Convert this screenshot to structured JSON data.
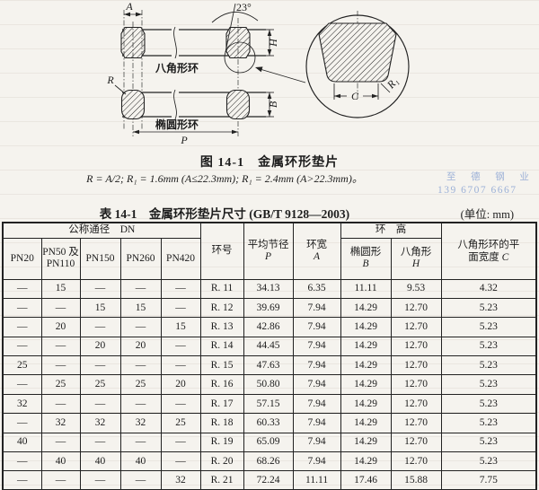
{
  "fig": {
    "caption": "图 14-1　金属环形垫片",
    "formula": "R = A/2;  R₁ = 1.6mm (A≤22.3mm);  R₁ = 2.4mm (A>22.3mm)。",
    "octagonal_ring": "八角形环",
    "oval_ring": "椭圆形环",
    "dim_a": "A",
    "dim_h": "H",
    "dim_b": "B",
    "dim_p": "P",
    "dim_r": "R",
    "dim_r1": "R₁",
    "dim_c": "C",
    "angle": "23°"
  },
  "watermark": {
    "company": "至 德 钢 业",
    "phone": "139 6707 6667",
    "color": "#87a1d2"
  },
  "table": {
    "title": "表 14-1　金属环形垫片尺寸 (GB/T 9128—2003)",
    "unit": "(单位: mm)",
    "header": {
      "dn_group": "公称通径　DN",
      "pn20": "PN20",
      "pn50_110": "PN50 及\nPN110",
      "pn150": "PN150",
      "pn260": "PN260",
      "pn420": "PN420",
      "ring_no": "环号",
      "pitch_label": "平均节径",
      "pitch_sym": "P",
      "width_label": "环宽",
      "width_sym": "A",
      "height_group": "环　高",
      "oval_label": "椭圆形",
      "oval_sym": "B",
      "oct_label": "八角形",
      "oct_sym": "H",
      "flat_label": "八角形环的平面宽度 ",
      "flat_sym": "C"
    },
    "rows": [
      [
        "—",
        "15",
        "—",
        "—",
        "—",
        "R. 11",
        "34.13",
        "6.35",
        "11.11",
        "9.53",
        "4.32"
      ],
      [
        "—",
        "—",
        "15",
        "15",
        "—",
        "R. 12",
        "39.69",
        "7.94",
        "14.29",
        "12.70",
        "5.23"
      ],
      [
        "—",
        "20",
        "—",
        "—",
        "15",
        "R. 13",
        "42.86",
        "7.94",
        "14.29",
        "12.70",
        "5.23"
      ],
      [
        "—",
        "—",
        "20",
        "20",
        "—",
        "R. 14",
        "44.45",
        "7.94",
        "14.29",
        "12.70",
        "5.23"
      ],
      [
        "25",
        "—",
        "—",
        "—",
        "—",
        "R. 15",
        "47.63",
        "7.94",
        "14.29",
        "12.70",
        "5.23"
      ],
      [
        "—",
        "25",
        "25",
        "25",
        "20",
        "R. 16",
        "50.80",
        "7.94",
        "14.29",
        "12.70",
        "5.23"
      ],
      [
        "32",
        "—",
        "—",
        "—",
        "—",
        "R. 17",
        "57.15",
        "7.94",
        "14.29",
        "12.70",
        "5.23"
      ],
      [
        "—",
        "32",
        "32",
        "32",
        "25",
        "R. 18",
        "60.33",
        "7.94",
        "14.29",
        "12.70",
        "5.23"
      ],
      [
        "40",
        "—",
        "—",
        "—",
        "—",
        "R. 19",
        "65.09",
        "7.94",
        "14.29",
        "12.70",
        "5.23"
      ],
      [
        "—",
        "40",
        "40",
        "40",
        "—",
        "R. 20",
        "68.26",
        "7.94",
        "14.29",
        "12.70",
        "5.23"
      ],
      [
        "—",
        "—",
        "—",
        "—",
        "32",
        "R. 21",
        "72.24",
        "11.11",
        "17.46",
        "15.88",
        "7.75"
      ]
    ]
  },
  "ink_color": "#1c1c1c",
  "paper_color": "#f5f3ee"
}
